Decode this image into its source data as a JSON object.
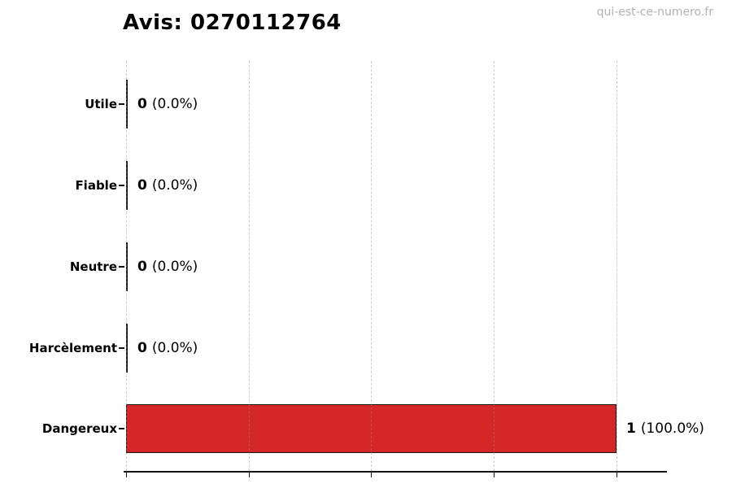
{
  "watermark": "qui-est-ce-numero.fr",
  "chart_data": {
    "type": "bar",
    "orientation": "horizontal",
    "title": "Avis: 0270112764",
    "categories": [
      "Utile",
      "Fiable",
      "Neutre",
      "Harcèlement",
      "Dangereux"
    ],
    "values": [
      0,
      0,
      0,
      0,
      1
    ],
    "percent_labels": [
      "(0.0%)",
      "(0.0%)",
      "(0.0%)",
      "(0.0%)",
      "(100.0%)"
    ],
    "bar_color": "#d62728",
    "bar_edge_color": "#151515",
    "xmax": 1,
    "xticks": [
      0,
      0.25,
      0.5,
      0.75,
      1.0
    ],
    "xtick_labels": [],
    "grid": "vertical-dashed",
    "legend": "none"
  }
}
